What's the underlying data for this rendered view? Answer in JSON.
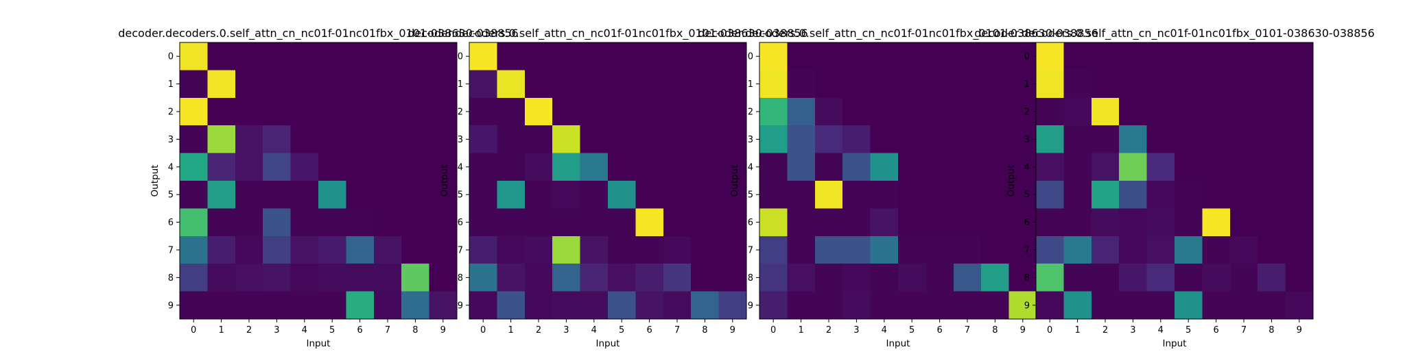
{
  "figure": {
    "background": "#ffffff",
    "colormap": "viridis",
    "colormap_low": "#440154",
    "colormap_high": "#fde725"
  },
  "chart_data": [
    {
      "type": "heatmap",
      "title": "decoder.decoders.0.self_attn_cn_nc01f-01nc01fbx_0101-038630-038856",
      "xlabel": "Input",
      "ylabel": "Output",
      "x_ticks": [
        "0",
        "1",
        "2",
        "3",
        "4",
        "5",
        "6",
        "7",
        "8",
        "9"
      ],
      "y_ticks": [
        "0",
        "1",
        "2",
        "3",
        "4",
        "5",
        "6",
        "7",
        "8",
        "9"
      ],
      "values": [
        [
          0.98,
          0.0,
          0.0,
          0.0,
          0.0,
          0.0,
          0.0,
          0.0,
          0.0,
          0.0
        ],
        [
          0.01,
          0.98,
          0.0,
          0.0,
          0.0,
          0.0,
          0.0,
          0.0,
          0.0,
          0.0
        ],
        [
          0.99,
          0.0,
          0.0,
          0.0,
          0.0,
          0.0,
          0.0,
          0.0,
          0.0,
          0.0
        ],
        [
          0.01,
          0.85,
          0.05,
          0.1,
          0.0,
          0.0,
          0.0,
          0.0,
          0.0,
          0.0
        ],
        [
          0.6,
          0.1,
          0.05,
          0.2,
          0.06,
          0.0,
          0.0,
          0.0,
          0.0,
          0.0
        ],
        [
          0.01,
          0.55,
          0.01,
          0.01,
          0.01,
          0.5,
          0.0,
          0.0,
          0.0,
          0.0
        ],
        [
          0.7,
          0.01,
          0.01,
          0.25,
          0.01,
          0.01,
          0.01,
          0.0,
          0.0,
          0.0
        ],
        [
          0.38,
          0.08,
          0.02,
          0.18,
          0.05,
          0.07,
          0.32,
          0.05,
          0.0,
          0.0
        ],
        [
          0.18,
          0.03,
          0.04,
          0.05,
          0.02,
          0.03,
          0.03,
          0.03,
          0.75,
          0.0
        ],
        [
          0.01,
          0.01,
          0.01,
          0.01,
          0.01,
          0.01,
          0.62,
          0.02,
          0.35,
          0.05
        ]
      ]
    },
    {
      "type": "heatmap",
      "title": "decoder.decoders.0.self_attn_cn_nc01f-01nc01fbx_0101-038630-038856",
      "xlabel": "Input",
      "ylabel": "Output",
      "x_ticks": [
        "0",
        "1",
        "2",
        "3",
        "4",
        "5",
        "6",
        "7",
        "8",
        "9"
      ],
      "y_ticks": [
        "0",
        "1",
        "2",
        "3",
        "4",
        "5",
        "6",
        "7",
        "8",
        "9"
      ],
      "values": [
        [
          0.99,
          0.0,
          0.0,
          0.0,
          0.0,
          0.0,
          0.0,
          0.0,
          0.0,
          0.0
        ],
        [
          0.05,
          0.97,
          0.0,
          0.0,
          0.0,
          0.0,
          0.0,
          0.0,
          0.0,
          0.0
        ],
        [
          0.01,
          0.01,
          0.99,
          0.0,
          0.0,
          0.0,
          0.0,
          0.0,
          0.0,
          0.0
        ],
        [
          0.06,
          0.01,
          0.01,
          0.92,
          0.0,
          0.0,
          0.0,
          0.0,
          0.0,
          0.0
        ],
        [
          0.01,
          0.01,
          0.03,
          0.55,
          0.4,
          0.0,
          0.0,
          0.0,
          0.0,
          0.0
        ],
        [
          0.01,
          0.52,
          0.01,
          0.02,
          0.01,
          0.5,
          0.0,
          0.0,
          0.0,
          0.0
        ],
        [
          0.01,
          0.01,
          0.01,
          0.01,
          0.01,
          0.01,
          0.99,
          0.0,
          0.0,
          0.0
        ],
        [
          0.08,
          0.02,
          0.03,
          0.85,
          0.05,
          0.01,
          0.01,
          0.02,
          0.0,
          0.0
        ],
        [
          0.38,
          0.05,
          0.02,
          0.32,
          0.1,
          0.04,
          0.08,
          0.15,
          0.0,
          0.0
        ],
        [
          0.02,
          0.25,
          0.02,
          0.03,
          0.03,
          0.25,
          0.05,
          0.03,
          0.32,
          0.18
        ]
      ]
    },
    {
      "type": "heatmap",
      "title": "decoder.decoders.0.self_attn_cn_nc01f-01nc01fbx_0101-038630-038856",
      "xlabel": "Input",
      "ylabel": "Output",
      "x_ticks": [
        "0",
        "1",
        "2",
        "3",
        "4",
        "5",
        "6",
        "7",
        "8",
        "9"
      ],
      "y_ticks": [
        "0",
        "1",
        "2",
        "3",
        "4",
        "5",
        "6",
        "7",
        "8",
        "9"
      ],
      "values": [
        [
          0.99,
          0.0,
          0.0,
          0.0,
          0.0,
          0.0,
          0.0,
          0.0,
          0.0,
          0.0
        ],
        [
          0.98,
          0.01,
          0.0,
          0.0,
          0.0,
          0.0,
          0.0,
          0.0,
          0.0,
          0.0
        ],
        [
          0.65,
          0.3,
          0.03,
          0.0,
          0.0,
          0.0,
          0.0,
          0.0,
          0.0,
          0.0
        ],
        [
          0.55,
          0.25,
          0.12,
          0.08,
          0.0,
          0.0,
          0.0,
          0.0,
          0.0,
          0.0
        ],
        [
          0.01,
          0.25,
          0.01,
          0.25,
          0.5,
          0.0,
          0.0,
          0.0,
          0.0,
          0.0
        ],
        [
          0.01,
          0.01,
          0.98,
          0.01,
          0.01,
          0.0,
          0.0,
          0.0,
          0.0,
          0.0
        ],
        [
          0.92,
          0.01,
          0.01,
          0.01,
          0.05,
          0.0,
          0.0,
          0.0,
          0.0,
          0.0
        ],
        [
          0.18,
          0.01,
          0.25,
          0.25,
          0.38,
          0.01,
          0.01,
          0.01,
          0.0,
          0.0
        ],
        [
          0.15,
          0.04,
          0.01,
          0.02,
          0.01,
          0.03,
          0.01,
          0.27,
          0.55,
          0.0
        ],
        [
          0.08,
          0.01,
          0.01,
          0.03,
          0.01,
          0.01,
          0.01,
          0.01,
          0.01,
          0.88
        ]
      ]
    },
    {
      "type": "heatmap",
      "title": "decoder.decoders.0.self_attn_cn_nc01f-01nc01fbx_0101-038630-038856",
      "xlabel": "Input",
      "ylabel": "Output",
      "x_ticks": [
        "0",
        "1",
        "2",
        "3",
        "4",
        "5",
        "6",
        "7",
        "8",
        "9"
      ],
      "y_ticks": [
        "0",
        "1",
        "2",
        "3",
        "4",
        "5",
        "6",
        "7",
        "8",
        "9"
      ],
      "values": [
        [
          0.99,
          0.0,
          0.0,
          0.0,
          0.0,
          0.0,
          0.0,
          0.0,
          0.0,
          0.0
        ],
        [
          0.98,
          0.01,
          0.0,
          0.0,
          0.0,
          0.0,
          0.0,
          0.0,
          0.0,
          0.0
        ],
        [
          0.01,
          0.02,
          0.98,
          0.0,
          0.0,
          0.0,
          0.0,
          0.0,
          0.0,
          0.0
        ],
        [
          0.55,
          0.01,
          0.01,
          0.4,
          0.0,
          0.0,
          0.0,
          0.0,
          0.0,
          0.0
        ],
        [
          0.04,
          0.01,
          0.05,
          0.78,
          0.12,
          0.0,
          0.0,
          0.0,
          0.0,
          0.0
        ],
        [
          0.22,
          0.01,
          0.58,
          0.24,
          0.02,
          0.01,
          0.0,
          0.0,
          0.0,
          0.0
        ],
        [
          0.01,
          0.01,
          0.03,
          0.02,
          0.03,
          0.01,
          0.99,
          0.0,
          0.0,
          0.0
        ],
        [
          0.22,
          0.4,
          0.1,
          0.02,
          0.04,
          0.4,
          0.01,
          0.02,
          0.0,
          0.0
        ],
        [
          0.72,
          0.01,
          0.01,
          0.06,
          0.12,
          0.01,
          0.03,
          0.01,
          0.08,
          0.0
        ],
        [
          0.02,
          0.5,
          0.01,
          0.01,
          0.01,
          0.5,
          0.01,
          0.01,
          0.01,
          0.02
        ]
      ]
    }
  ]
}
